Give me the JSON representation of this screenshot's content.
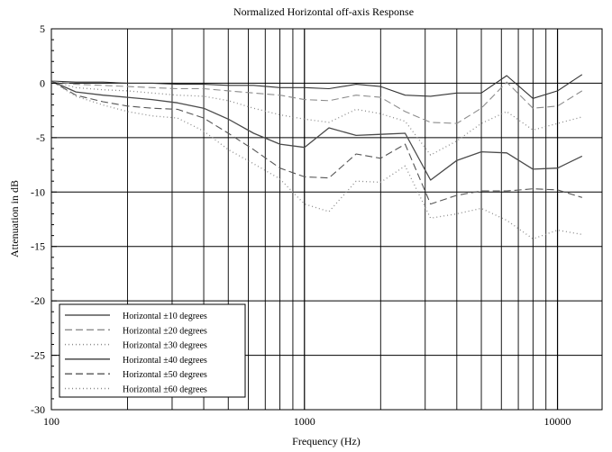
{
  "chart_data": {
    "type": "line",
    "title": "Normalized Horizontal off-axis Response",
    "xlabel": "Frequency (Hz)",
    "ylabel": "Attenuation in dB",
    "xscale": "log",
    "xlim": [
      100,
      15000
    ],
    "ylim": [
      -30,
      5
    ],
    "grid": true,
    "legend_position": "bottom-left",
    "x_ticks": [
      {
        "value": 100,
        "label": "100"
      },
      {
        "value": 1000,
        "label": "1000"
      },
      {
        "value": 10000,
        "label": "10000"
      }
    ],
    "y_ticks": [
      {
        "value": 5,
        "label": "5"
      },
      {
        "value": 0,
        "label": "0"
      },
      {
        "value": -5,
        "label": "-5"
      },
      {
        "value": -10,
        "label": "-10"
      },
      {
        "value": -15,
        "label": "-15"
      },
      {
        "value": -20,
        "label": "-20"
      },
      {
        "value": -25,
        "label": "-25"
      },
      {
        "value": -30,
        "label": "-30"
      }
    ],
    "x": [
      100,
      125,
      160,
      200,
      250,
      315,
      400,
      500,
      630,
      800,
      1000,
      1250,
      1600,
      2000,
      2500,
      3150,
      4000,
      5000,
      6300,
      8000,
      10000,
      12500
    ],
    "series": [
      {
        "name": "Horizontal ±10 degrees",
        "color": "#333333",
        "dash": "solid",
        "width": 1.1,
        "values": [
          0.2,
          0.1,
          0.1,
          0.0,
          0.0,
          -0.1,
          -0.1,
          -0.2,
          -0.2,
          -0.4,
          -0.4,
          -0.5,
          -0.1,
          -0.3,
          -1.1,
          -1.2,
          -0.9,
          -0.9,
          0.7,
          -1.4,
          -0.7,
          0.8
        ]
      },
      {
        "name": "Horizontal ±20 degrees",
        "color": "#8c8c8c",
        "dash": "8,4",
        "width": 1.1,
        "values": [
          0.2,
          -0.1,
          -0.2,
          -0.3,
          -0.4,
          -0.5,
          -0.5,
          -0.7,
          -0.9,
          -1.1,
          -1.5,
          -1.6,
          -1.1,
          -1.3,
          -2.6,
          -3.6,
          -3.7,
          -2.3,
          0.1,
          -2.3,
          -2.1,
          -0.7
        ]
      },
      {
        "name": "Horizontal ±30 degrees",
        "color": "#8c8c8c",
        "dash": "1,3",
        "width": 1.3,
        "values": [
          0.2,
          -0.4,
          -0.6,
          -0.7,
          -0.9,
          -1.1,
          -1.2,
          -1.6,
          -2.3,
          -2.9,
          -3.3,
          -3.6,
          -2.4,
          -2.8,
          -3.5,
          -6.6,
          -5.3,
          -3.7,
          -2.6,
          -4.3,
          -3.7,
          -3.1
        ]
      },
      {
        "name": "Horizontal ±40 degrees",
        "color": "#4a4a4a",
        "dash": "solid",
        "width": 1.3,
        "values": [
          0.2,
          -0.8,
          -1.1,
          -1.3,
          -1.5,
          -1.8,
          -2.3,
          -3.3,
          -4.6,
          -5.6,
          -5.9,
          -4.1,
          -4.8,
          -4.7,
          -4.6,
          -8.9,
          -7.1,
          -6.3,
          -6.4,
          -7.9,
          -7.8,
          -6.7
        ]
      },
      {
        "name": "Horizontal ±50 degrees",
        "color": "#555555",
        "dash": "8,4",
        "width": 1.1,
        "values": [
          0.2,
          -1.1,
          -1.7,
          -2.1,
          -2.3,
          -2.4,
          -3.2,
          -4.6,
          -6.1,
          -7.8,
          -8.6,
          -8.7,
          -6.5,
          -6.9,
          -5.6,
          -11.1,
          -10.3,
          -9.9,
          -9.9,
          -9.7,
          -9.8,
          -10.5
        ]
      },
      {
        "name": "Horizontal ±60 degrees",
        "color": "#8c8c8c",
        "dash": "1,3",
        "width": 1.3,
        "values": [
          0.2,
          -1.2,
          -2.0,
          -2.6,
          -3.0,
          -3.2,
          -4.4,
          -6.1,
          -7.4,
          -8.8,
          -11.1,
          -11.8,
          -9.0,
          -9.1,
          -7.6,
          -12.4,
          -12.0,
          -11.5,
          -12.6,
          -14.3,
          -13.5,
          -13.9
        ]
      }
    ]
  }
}
